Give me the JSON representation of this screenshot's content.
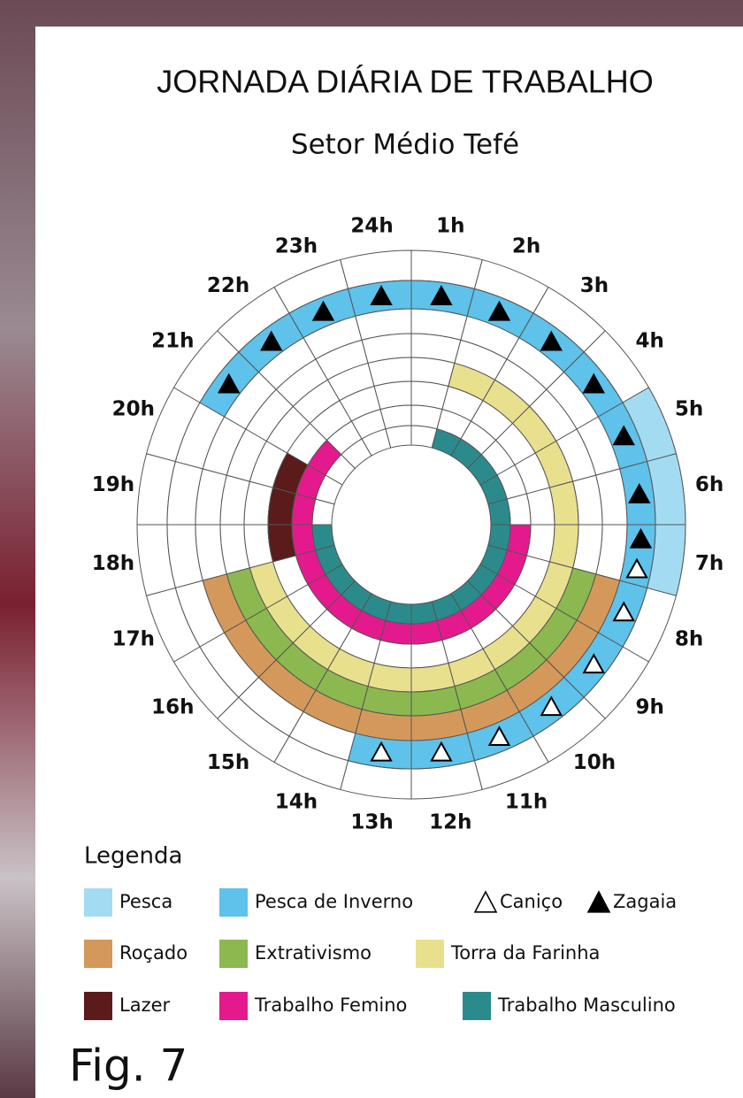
{
  "title": "JORNADA DIÁRIA DE TRABALHO",
  "subtitle": "Setor Médio Tefé",
  "hours": [
    "1h",
    "2h",
    "3h",
    "4h",
    "5h",
    "6h",
    "7h",
    "8h",
    "9h",
    "10h",
    "11h",
    "12h",
    "13h",
    "14h",
    "15h",
    "16h",
    "17h",
    "18h",
    "19h",
    "20h",
    "21h",
    "22h",
    "23h",
    "24h"
  ],
  "rings": [
    {
      "name": "Pesca",
      "color": "#a3dcf2",
      "hours": [
        5,
        6,
        7
      ]
    },
    {
      "name": "Pesca de Inverno",
      "color": "#5ec2ea",
      "hours": [
        21,
        22,
        23,
        24,
        1,
        2,
        3,
        4,
        5,
        6,
        7,
        8,
        9,
        10,
        11,
        12,
        13
      ]
    },
    {
      "name": "Roçado",
      "color": "#d4995a",
      "hours": [
        8,
        9,
        10,
        11,
        12,
        13,
        14,
        15,
        16,
        17
      ]
    },
    {
      "name": "Extrativismo",
      "color": "#8cb94f",
      "hours": [
        8,
        9,
        10,
        11,
        12,
        13,
        14,
        15,
        16,
        17
      ]
    },
    {
      "name": "Torra da Farinha",
      "color": "#e9e08e",
      "hours": [
        2,
        3,
        4,
        5,
        6,
        7,
        8,
        9,
        10,
        11,
        12,
        13,
        14,
        15,
        16,
        17
      ]
    },
    {
      "name": "Lazer",
      "color": "#5b1b1b",
      "hours": [
        18,
        19,
        20
      ]
    },
    {
      "name": "Trabalho Femino",
      "color": "#e5198e",
      "hours": [
        7,
        8,
        9,
        10,
        11,
        12,
        13,
        14,
        15,
        16,
        17,
        18,
        19,
        20,
        21
      ]
    },
    {
      "name": "Trabalho Masculino",
      "color": "#2b8b8c",
      "hours": [
        2,
        3,
        4,
        5,
        6,
        7,
        8,
        9,
        10,
        11,
        12,
        13,
        14,
        15,
        16,
        17,
        18
      ]
    }
  ],
  "markers": [
    {
      "name": "Caniço",
      "filled": false,
      "hours": [
        7,
        8,
        9,
        10,
        11,
        12,
        13
      ]
    },
    {
      "name": "Zagaia",
      "filled": true,
      "hours": [
        21,
        22,
        23,
        24,
        1,
        2,
        3,
        4,
        5,
        6,
        7
      ]
    }
  ],
  "legend_title": "Legenda",
  "caption": "Fig. 7"
}
